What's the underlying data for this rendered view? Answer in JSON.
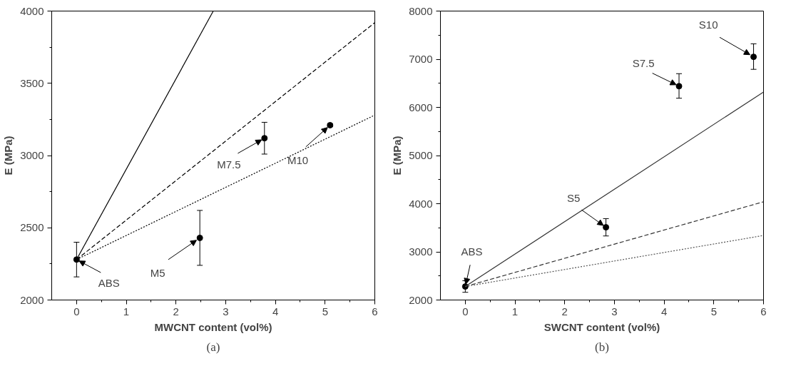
{
  "chart_data": [
    {
      "type": "scatter",
      "title": "(a)",
      "xlabel": "MWCNT content (vol%)",
      "ylabel": "E (MPa)",
      "xlim": [
        -0.5,
        6
      ],
      "ylim": [
        2000,
        4000
      ],
      "xticks": [
        0,
        1,
        2,
        3,
        4,
        5,
        6
      ],
      "yticks": [
        2000,
        2500,
        3000,
        3500,
        4000
      ],
      "grid": false,
      "series": [
        {
          "marker": "circle",
          "color": "#000000",
          "x": [
            0,
            2.48,
            3.78,
            5.1
          ],
          "values": [
            2280,
            2430,
            3120,
            3210
          ],
          "errors": [
            [
              2160,
              2400
            ],
            [
              2240,
              2620
            ],
            [
              3010,
              3230
            ],
            [
              3200,
              3220
            ]
          ]
        },
        {
          "type": "line",
          "color": "#000000",
          "line_style": "solid",
          "x": [
            0,
            2.75
          ],
          "values": [
            2280,
            4000
          ]
        },
        {
          "type": "line",
          "color": "#000000",
          "line_style": "dashed",
          "x": [
            0,
            6
          ],
          "values": [
            2280,
            3920
          ]
        },
        {
          "type": "line",
          "color": "#000000",
          "line_style": "dotted",
          "x": [
            0,
            6
          ],
          "values": [
            2280,
            3280
          ]
        }
      ],
      "annotations": [
        {
          "text": "ABS",
          "x": 0,
          "y": 2280
        },
        {
          "text": "M5",
          "x": 2.48,
          "y": 2430
        },
        {
          "text": "M7.5",
          "x": 3.78,
          "y": 3120
        },
        {
          "text": "M10",
          "x": 5.1,
          "y": 3210
        }
      ]
    },
    {
      "type": "scatter",
      "title": "(b)",
      "xlabel": "SWCNT content (vol%)",
      "ylabel": "E (MPa)",
      "xlim": [
        -0.5,
        6
      ],
      "ylim": [
        2000,
        8000
      ],
      "xticks": [
        0,
        1,
        2,
        3,
        4,
        5,
        6
      ],
      "yticks": [
        2000,
        3000,
        4000,
        5000,
        6000,
        7000,
        8000
      ],
      "grid": false,
      "series": [
        {
          "marker": "circle",
          "color": "#000000",
          "x": [
            0,
            2.83,
            4.3,
            5.8
          ],
          "values": [
            2280,
            3510,
            6440,
            7050
          ],
          "errors": [
            [
              2160,
              2400
            ],
            [
              3330,
              3690
            ],
            [
              6190,
              6700
            ],
            [
              6790,
              7320
            ]
          ]
        },
        {
          "type": "line",
          "color": "#333333",
          "line_style": "solid",
          "x": [
            0,
            6
          ],
          "values": [
            2280,
            6320
          ]
        },
        {
          "type": "line",
          "color": "#333333",
          "line_style": "dashed",
          "x": [
            0,
            6
          ],
          "values": [
            2280,
            4040
          ]
        },
        {
          "type": "line",
          "color": "#555555",
          "line_style": "dotted",
          "x": [
            0,
            6
          ],
          "values": [
            2280,
            3340
          ]
        }
      ],
      "annotations": [
        {
          "text": "ABS",
          "x": 0,
          "y": 2280
        },
        {
          "text": "S5",
          "x": 2.83,
          "y": 3510
        },
        {
          "text": "S7.5",
          "x": 4.3,
          "y": 6440
        },
        {
          "text": "S10",
          "x": 5.8,
          "y": 7050
        }
      ]
    }
  ]
}
